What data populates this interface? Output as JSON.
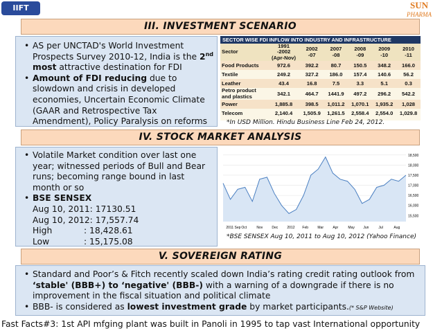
{
  "header": {
    "left_logo": "IIFT",
    "right_logo": [
      "SUN",
      "PHARMA"
    ]
  },
  "sections": [
    {
      "title": "III. INVESTMENT SCENARIO",
      "bullets": [
        [
          "AS per UNCTAD's World Investment Prospects Survey 2010-12, India is the",
          "2",
          "nd",
          "most",
          "attractive destination for FDI"
        ],
        [
          "Amount of FDI reducing",
          "due to slowdown and crisis in developed economies, Uncertain Economic Climate (GAAR and Retrospective Tax Amendment), Policy Paralysis on reforms"
        ]
      ]
    },
    {
      "title": "IV. STOCK MARKET ANALYSIS",
      "bullets": [
        [
          "Volatile Market condition over last one year; witnessed periods of Bull and Bear runs; becoming range bound in last month or so"
        ],
        [
          "BSE SENSEX"
        ]
      ],
      "sensex_lines": [
        [
          "Aug 10, 2011: 17130.51"
        ],
        [
          "Aug 10, 2012: 17,557.74"
        ],
        [
          "High",
          ": 18,428.61"
        ],
        [
          "Low",
          ": 15,175.08"
        ]
      ]
    },
    {
      "title": "V. SOVEREIGN RATING",
      "bullets": [
        [
          "Standard and Poor’s & Fitch recently scaled down India’s rating credit rating outlook from",
          "‘stable' (BBB+) to ‘negative' (BBB-)",
          "with a warning of a downgrade if there is no improvement in the fiscal situation and political climate"
        ],
        [
          "BBB- is considered as",
          "lowest investment grade",
          "by market participants.",
          "(* S&P Website)"
        ]
      ]
    }
  ],
  "fdi_table": {
    "title": "SECTOR WISE FDI INFLOW INTO INDUSTRY AND INFRASTRUCTURE",
    "columns": [
      [
        "Sector"
      ],
      [
        "1991",
        "-2002",
        "(Apr-Nov)"
      ],
      [
        "2002",
        "-07"
      ],
      [
        "2007",
        "-08"
      ],
      [
        "2008",
        "-09"
      ],
      [
        "2009",
        "-10"
      ],
      [
        "2010",
        "-11"
      ]
    ],
    "rows": [
      [
        [
          "Food Products"
        ],
        "972.6",
        "392.2",
        "80.7",
        "150.5",
        "348.2",
        "166.0"
      ],
      [
        [
          "Textile"
        ],
        "249.2",
        "327.2",
        "186.0",
        "157.4",
        "140.6",
        "56.2"
      ],
      [
        [
          "Leather"
        ],
        "43.4",
        "16.8",
        "7.5",
        "3.3",
        "5.1",
        "0.3"
      ],
      [
        [
          "Petro product",
          "and plastics"
        ],
        "342.1",
        "464.7",
        "1441.9",
        "497.2",
        "296.2",
        "542.2"
      ],
      [
        [
          "Power"
        ],
        "1,885.8",
        "398.5",
        "1,011.2",
        "1,070.1",
        "1,935.2",
        "1,028"
      ],
      [
        [
          "Telecom"
        ],
        "2,140.4",
        "1,505.9",
        "1,261.5",
        "2,558.4",
        "2,554.0",
        "1,029.8"
      ]
    ],
    "caption": "*In USD Million. Hindu Business Line Feb 24, 2012."
  },
  "sensex_chart": {
    "x_labels": [
      "2011 Sep",
      "Oct",
      "Nov",
      "Dec",
      "2012",
      "Feb",
      "Mar",
      "Apr",
      "May",
      "Jun",
      "Jul",
      "Aug"
    ],
    "ylim": [
      15200,
      18700
    ],
    "yticks": [
      {
        "value": 15500,
        "label": "15,500"
      },
      {
        "value": 16000,
        "label": "16,000"
      },
      {
        "value": 16500,
        "label": "16,500"
      },
      {
        "value": 17000,
        "label": "17,000"
      },
      {
        "value": 17500,
        "label": "17,500"
      },
      {
        "value": 18000,
        "label": "18,000"
      },
      {
        "value": 18500,
        "label": "18,500"
      }
    ],
    "values": [
      17100,
      16300,
      16800,
      16900,
      16200,
      17300,
      17400,
      16600,
      16000,
      15600,
      15800,
      16500,
      17500,
      17800,
      18400,
      17600,
      17300,
      17200,
      16800,
      16100,
      16300,
      16900,
      17000,
      17300,
      17200,
      17500
    ],
    "color": "#4a7fc1",
    "caption": "*BSE SENSEX Aug 10, 2011 to Aug 10, 2012 (Yahoo Finance)"
  },
  "footer": "Fast Facts#3: 1st API mfging plant was built in Panoli in 1995 to tap vast International opportunity"
}
